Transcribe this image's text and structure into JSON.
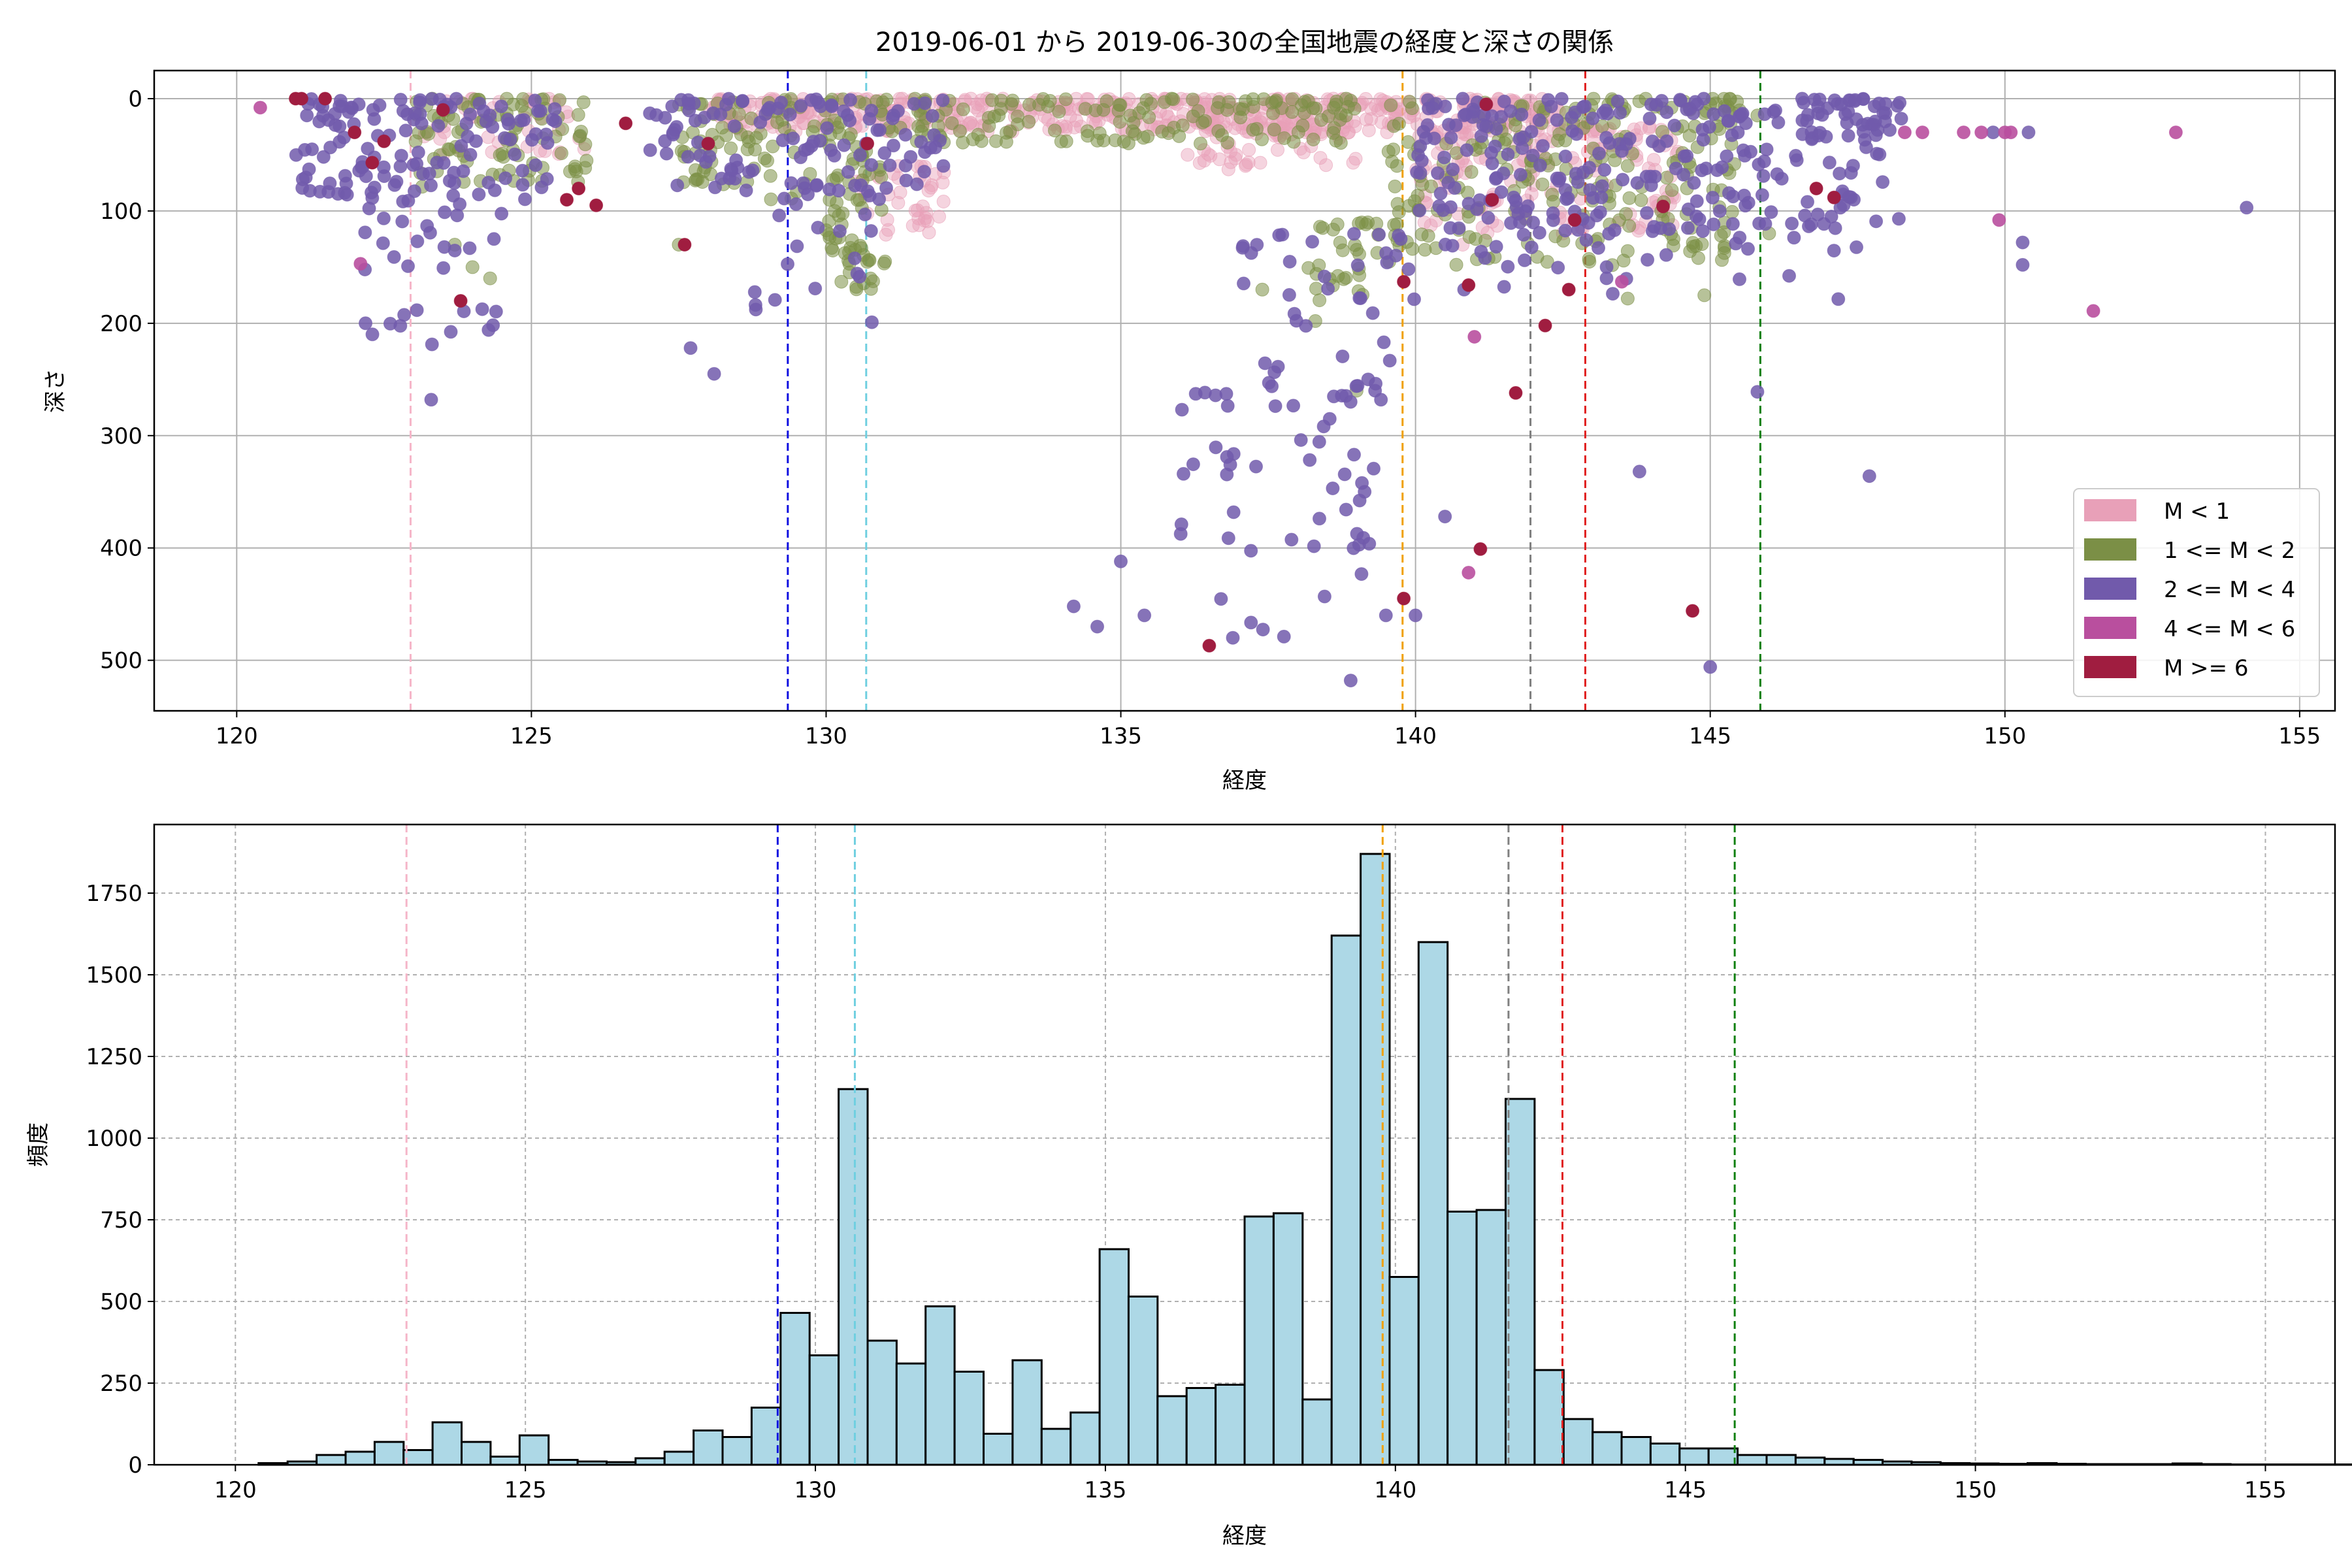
{
  "title": "2019-06-01 から 2019-06-30の全国地震の経度と深さの関係",
  "colors": {
    "m_lt1": "#e8a0b8",
    "m_1_2": "#7b8f46",
    "m_2_4": "#715aab",
    "m_4_6": "#b94f9e",
    "m_ge6": "#a01d40",
    "hist_fill": "#add8e6",
    "vline_pink": "#f5b5c8",
    "vline_blue": "#1010e0",
    "vline_cyan": "#6fcfe0",
    "vline_orange": "#f0a000",
    "vline_gray": "#808080",
    "vline_red": "#e02020",
    "vline_green": "#108010"
  },
  "chart_data": [
    {
      "type": "scatter",
      "xlabel": "経度",
      "ylabel": "深さ",
      "xlim": [
        118.6,
        155.6
      ],
      "ylim": [
        545,
        -25
      ],
      "y_inverted": true,
      "xticks": [
        "120",
        "125",
        "130",
        "135",
        "140",
        "145",
        "150",
        "155"
      ],
      "yticks": [
        "0",
        "100",
        "200",
        "300",
        "400",
        "500"
      ],
      "grid": true,
      "legend_position": "lower-right",
      "legend": [
        "M < 1",
        "1 <= M < 2",
        "2 <= M < 4",
        "4 <= M < 6",
        "M >= 6"
      ],
      "vlines": [
        {
          "x": 122.95,
          "color": "vline_pink"
        },
        {
          "x": 129.35,
          "color": "vline_blue"
        },
        {
          "x": 130.68,
          "color": "vline_cyan"
        },
        {
          "x": 139.78,
          "color": "vline_orange"
        },
        {
          "x": 141.95,
          "color": "vline_gray"
        },
        {
          "x": 142.88,
          "color": "vline_red"
        },
        {
          "x": 145.85,
          "color": "vline_green"
        }
      ],
      "series": [
        {
          "name": "M < 1",
          "color_key": "m_lt1",
          "clusters": [
            {
              "x": [
                128,
                142.5
              ],
              "y": [
                0,
                30
              ],
              "n": 520
            },
            {
              "x": [
                140,
                144.5
              ],
              "y": [
                25,
                120
              ],
              "n": 160
            },
            {
              "x": [
                130.5,
                132
              ],
              "y": [
                60,
                130
              ],
              "n": 40
            },
            {
              "x": [
                136,
                139
              ],
              "y": [
                20,
                65
              ],
              "n": 70
            },
            {
              "x": [
                123,
                126
              ],
              "y": [
                0,
                50
              ],
              "n": 40
            }
          ],
          "points": [
            [
              140.8,
              130
            ],
            [
              142.5,
              120
            ],
            [
              143.8,
              115
            ]
          ]
        },
        {
          "name": "1 <= M < 2",
          "color_key": "m_1_2",
          "clusters": [
            {
              "x": [
                123,
                126
              ],
              "y": [
                0,
                80
              ],
              "n": 90
            },
            {
              "x": [
                127.5,
                131
              ],
              "y": [
                0,
                90
              ],
              "n": 110
            },
            {
              "x": [
                130,
                131
              ],
              "y": [
                90,
                170
              ],
              "n": 40
            },
            {
              "x": [
                131,
                139
              ],
              "y": [
                0,
                40
              ],
              "n": 150
            },
            {
              "x": [
                139.5,
                145.5
              ],
              "y": [
                0,
                150
              ],
              "n": 230
            },
            {
              "x": [
                138,
                140
              ],
              "y": [
                110,
                180
              ],
              "n": 35
            }
          ],
          "points": [
            [
              123.7,
              130
            ],
            [
              124.0,
              150
            ],
            [
              124.3,
              160
            ],
            [
              127.5,
              130
            ],
            [
              131.0,
              145
            ],
            [
              139.0,
              260
            ],
            [
              138.3,
              198
            ],
            [
              137.4,
              170
            ],
            [
              143.6,
              178
            ],
            [
              144.9,
              175
            ],
            [
              145.8,
              15
            ],
            [
              146.0,
              120
            ]
          ]
        },
        {
          "name": "2 <= M < 4",
          "color_key": "m_2_4",
          "clusters": [
            {
              "x": [
                121,
                125.5
              ],
              "y": [
                0,
                90
              ],
              "n": 130
            },
            {
              "x": [
                122,
                124.5
              ],
              "y": [
                90,
                220
              ],
              "n": 35
            },
            {
              "x": [
                127,
                132
              ],
              "y": [
                0,
                80
              ],
              "n": 110
            },
            {
              "x": [
                128.5,
                131
              ],
              "y": [
                80,
                200
              ],
              "n": 25
            },
            {
              "x": [
                140,
                148
              ],
              "y": [
                0,
                120
              ],
              "n": 240
            },
            {
              "x": [
                137,
                140
              ],
              "y": [
                120,
                250
              ],
              "n": 35
            },
            {
              "x": [
                136,
                139.5
              ],
              "y": [
                250,
                480
              ],
              "n": 60
            },
            {
              "x": [
                140.5,
                147.5
              ],
              "y": [
                100,
                180
              ],
              "n": 50
            },
            {
              "x": [
                146.5,
                148.3
              ],
              "y": [
                0,
                40
              ],
              "n": 30
            }
          ],
          "points": [
            [
              123.3,
              268
            ],
            [
              128.1,
              245
            ],
            [
              127.7,
              222
            ],
            [
              134.2,
              452
            ],
            [
              134.6,
              470
            ],
            [
              135.0,
              412
            ],
            [
              135.4,
              460
            ],
            [
              136.9,
              480
            ],
            [
              138.9,
              518
            ],
            [
              140.0,
              460
            ],
            [
              140.5,
              372
            ],
            [
              143.8,
              332
            ],
            [
              145.0,
              506
            ],
            [
              147.7,
              336
            ],
            [
              145.8,
              261
            ],
            [
              150.3,
              128
            ],
            [
              150.3,
              148
            ],
            [
              154.1,
              97
            ],
            [
              148.2,
              107
            ],
            [
              149.8,
              30
            ],
            [
              150.4,
              30
            ]
          ]
        },
        {
          "name": "4 <= M < 6",
          "color_key": "m_4_6",
          "points": [
            [
              120.4,
              8
            ],
            [
              122.1,
              147
            ],
            [
              141.0,
              212
            ],
            [
              140.9,
              422
            ],
            [
              143.5,
              163
            ],
            [
              148.3,
              30
            ],
            [
              148.6,
              30
            ],
            [
              149.3,
              30
            ],
            [
              149.6,
              30
            ],
            [
              150.0,
              30
            ],
            [
              150.1,
              30
            ],
            [
              149.9,
              108
            ],
            [
              151.5,
              189
            ],
            [
              152.9,
              30
            ]
          ]
        },
        {
          "name": "M >= 6",
          "color_key": "m_ge6",
          "points": [
            [
              121.0,
              0
            ],
            [
              121.1,
              0
            ],
            [
              121.5,
              0
            ],
            [
              122.0,
              30
            ],
            [
              122.3,
              57
            ],
            [
              122.5,
              38
            ],
            [
              123.5,
              10
            ],
            [
              123.8,
              180
            ],
            [
              125.6,
              90
            ],
            [
              125.8,
              80
            ],
            [
              126.1,
              95
            ],
            [
              126.6,
              22
            ],
            [
              127.6,
              130
            ],
            [
              128.0,
              40
            ],
            [
              130.7,
              40
            ],
            [
              136.5,
              487
            ],
            [
              139.8,
              163
            ],
            [
              139.8,
              445
            ],
            [
              140.9,
              166
            ],
            [
              141.2,
              5
            ],
            [
              141.3,
              90
            ],
            [
              141.7,
              262
            ],
            [
              142.2,
              202
            ],
            [
              142.6,
              170
            ],
            [
              142.7,
              108
            ],
            [
              144.2,
              96
            ],
            [
              144.7,
              456
            ],
            [
              147.1,
              88
            ],
            [
              146.8,
              80
            ],
            [
              141.1,
              401
            ]
          ]
        }
      ]
    },
    {
      "type": "bar",
      "subtype": "histogram",
      "xlabel": "経度",
      "ylabel": "頻度",
      "xlim": [
        118.6,
        156.2
      ],
      "ylim": [
        0,
        1960
      ],
      "xticks": [
        "120",
        "125",
        "130",
        "135",
        "140",
        "145",
        "150",
        "155"
      ],
      "yticks": [
        "0",
        "250",
        "500",
        "750",
        "1000",
        "1250",
        "1500",
        "1750"
      ],
      "grid": true,
      "bin_start": 120.4,
      "bin_width": 0.5,
      "values": [
        5,
        10,
        30,
        40,
        70,
        45,
        130,
        70,
        25,
        90,
        15,
        10,
        8,
        20,
        40,
        105,
        85,
        175,
        465,
        335,
        1150,
        380,
        310,
        485,
        285,
        95,
        320,
        110,
        160,
        660,
        515,
        210,
        235,
        245,
        760,
        770,
        200,
        1620,
        1870,
        575,
        1600,
        775,
        780,
        1120,
        290,
        140,
        100,
        85,
        65,
        50,
        50,
        30,
        30,
        22,
        18,
        15,
        10,
        8,
        5,
        4,
        3,
        5,
        3,
        2,
        2,
        2,
        4,
        2,
        1,
        1,
        1,
        1,
        1,
        1,
        1,
        1,
        1,
        1
      ],
      "vlines": [
        {
          "x": 122.95,
          "color": "vline_pink"
        },
        {
          "x": 129.35,
          "color": "vline_blue"
        },
        {
          "x": 130.68,
          "color": "vline_cyan"
        },
        {
          "x": 139.78,
          "color": "vline_orange"
        },
        {
          "x": 141.95,
          "color": "vline_gray"
        },
        {
          "x": 142.88,
          "color": "vline_red"
        },
        {
          "x": 145.85,
          "color": "vline_green"
        }
      ]
    }
  ]
}
